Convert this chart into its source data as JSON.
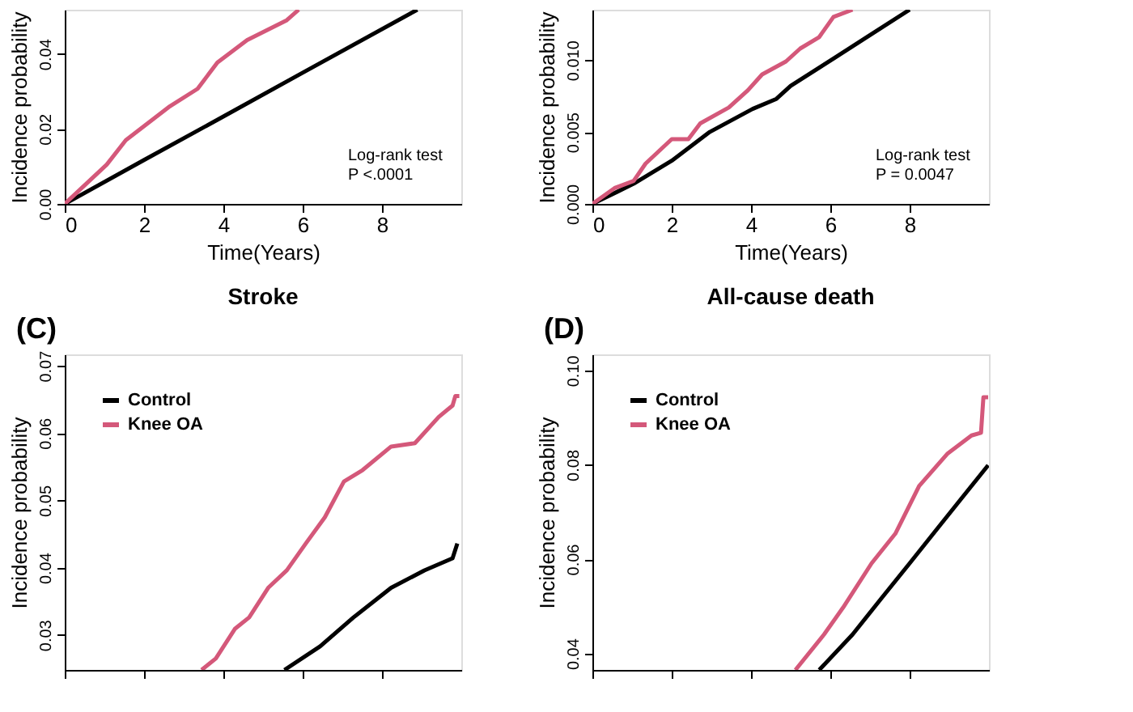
{
  "chart_data": [
    {
      "type": "line",
      "xlabel": "Time(Years)",
      "ylabel": "Incidence probability",
      "xlim": [
        0,
        10
      ],
      "ylim": [
        0,
        0.0518
      ],
      "xticks": [
        0,
        2,
        4,
        6,
        8
      ],
      "yticks": [
        {
          "value": 0,
          "label": "0.00"
        },
        {
          "value": 0.02,
          "label": "0.02"
        },
        {
          "value": 0.04,
          "label": "0.04"
        }
      ],
      "grid": false,
      "legend": false,
      "annotations": [
        "Log-rank test",
        "P <.0001"
      ],
      "series": [
        {
          "color": "#000000",
          "x": [
            0,
            2,
            4,
            6,
            8.89
          ],
          "values": [
            0,
            0.0117,
            0.0233,
            0.035,
            0.0518
          ]
        },
        {
          "color": "#d4587a",
          "x": [
            0,
            1.06,
            1.54,
            2.62,
            3.35,
            3.85,
            4.6,
            5.6,
            5.9
          ],
          "values": [
            0,
            0.0105,
            0.017,
            0.0258,
            0.0307,
            0.0377,
            0.0437,
            0.049,
            0.0518
          ]
        }
      ]
    },
    {
      "type": "line",
      "xlabel": "Time(Years)",
      "ylabel": "Incidence probability",
      "xlim": [
        0,
        10
      ],
      "ylim": [
        0,
        0.0135
      ],
      "xticks": [
        0,
        2,
        4,
        6,
        8
      ],
      "yticks": [
        {
          "value": 0,
          "label": "0.000"
        },
        {
          "value": 0.005,
          "label": "0.005"
        },
        {
          "value": 0.01,
          "label": "0.010"
        }
      ],
      "grid": false,
      "legend": false,
      "annotations": [
        "Log-rank test",
        "P = 0.0047"
      ],
      "series": [
        {
          "color": "#000000",
          "x": [
            0,
            1.04,
            2.0,
            2.96,
            4.04,
            4.64,
            5.0,
            6.08,
            7.04,
            8.0
          ],
          "values": [
            0,
            0.0014,
            0.003,
            0.005,
            0.0066,
            0.0073,
            0.0082,
            0.0101,
            0.0118,
            0.0135
          ]
        },
        {
          "color": "#d4587a",
          "x": [
            0,
            0.56,
            1.04,
            1.34,
            2.0,
            2.42,
            2.72,
            3.44,
            3.92,
            4.28,
            4.88,
            5.24,
            5.72,
            6.08,
            6.56
          ],
          "values": [
            0,
            0.0011,
            0.0016,
            0.0028,
            0.0045,
            0.0045,
            0.0056,
            0.0067,
            0.0079,
            0.009,
            0.0099,
            0.0108,
            0.0116,
            0.013,
            0.0135
          ]
        }
      ]
    },
    {
      "type": "line",
      "title": "Stroke",
      "ylabel": "Incidence probability",
      "xlim": [
        0,
        10
      ],
      "ylim": [
        0.0248,
        0.0717
      ],
      "xticks": [
        0,
        2,
        4,
        6,
        8
      ],
      "yticks": [
        {
          "value": 0.03,
          "label": "0.03"
        },
        {
          "value": 0.04,
          "label": "0.04"
        },
        {
          "value": 0.05,
          "label": "0.05"
        },
        {
          "value": 0.06,
          "label": "0.06"
        },
        {
          "value": 0.07,
          "label": "0.07"
        }
      ],
      "tick_labels": "y",
      "grid": false,
      "legend": "top left",
      "annotations": [
        "(C)"
      ],
      "series": [
        {
          "name": "Control",
          "color": "#000000",
          "x": [
            5.54,
            6.44,
            7.28,
            8.23,
            9.07,
            9.78,
            9.9
          ],
          "values": [
            0.0248,
            0.0283,
            0.0326,
            0.037,
            0.0396,
            0.0414,
            0.0436
          ]
        },
        {
          "name": "Knee OA",
          "color": "#d4587a",
          "x": [
            3.45,
            3.81,
            4.29,
            4.65,
            5.13,
            5.6,
            6.08,
            6.56,
            7.04,
            7.51,
            8.23,
            8.83,
            9.43,
            9.78,
            9.85,
            9.95
          ],
          "values": [
            0.0248,
            0.0265,
            0.0309,
            0.0326,
            0.037,
            0.0396,
            0.0436,
            0.0475,
            0.0528,
            0.0545,
            0.058,
            0.0585,
            0.0624,
            0.0641,
            0.0655,
            0.0655
          ]
        }
      ]
    },
    {
      "type": "line",
      "title": "All-cause death",
      "ylabel": "Incidence probability",
      "xlim": [
        0,
        10
      ],
      "ylim": [
        0.0365,
        0.1034
      ],
      "xticks": [
        0,
        2,
        4,
        6,
        8
      ],
      "yticks": [
        {
          "value": 0.04,
          "label": "0.04"
        },
        {
          "value": 0.06,
          "label": "0.06"
        },
        {
          "value": 0.08,
          "label": "0.08"
        },
        {
          "value": 0.1,
          "label": "0.10"
        }
      ],
      "tick_labels": "y",
      "grid": false,
      "legend": "top left",
      "annotations": [
        "(D)"
      ],
      "series": [
        {
          "name": "Control",
          "color": "#000000",
          "x": [
            5.72,
            6.56,
            7.28,
            8.0,
            8.72,
            9.32,
            9.98
          ],
          "values": [
            0.0365,
            0.044,
            0.0516,
            0.0591,
            0.0667,
            0.073,
            0.0799
          ]
        },
        {
          "name": "Knee OA",
          "color": "#d4587a",
          "x": [
            5.12,
            5.84,
            6.32,
            7.04,
            7.64,
            8.24,
            8.96,
            9.56,
            9.8,
            9.86,
            9.98
          ],
          "values": [
            0.0365,
            0.044,
            0.0497,
            0.0591,
            0.0654,
            0.0755,
            0.0824,
            0.0862,
            0.0868,
            0.0943,
            0.0943
          ]
        }
      ]
    }
  ]
}
